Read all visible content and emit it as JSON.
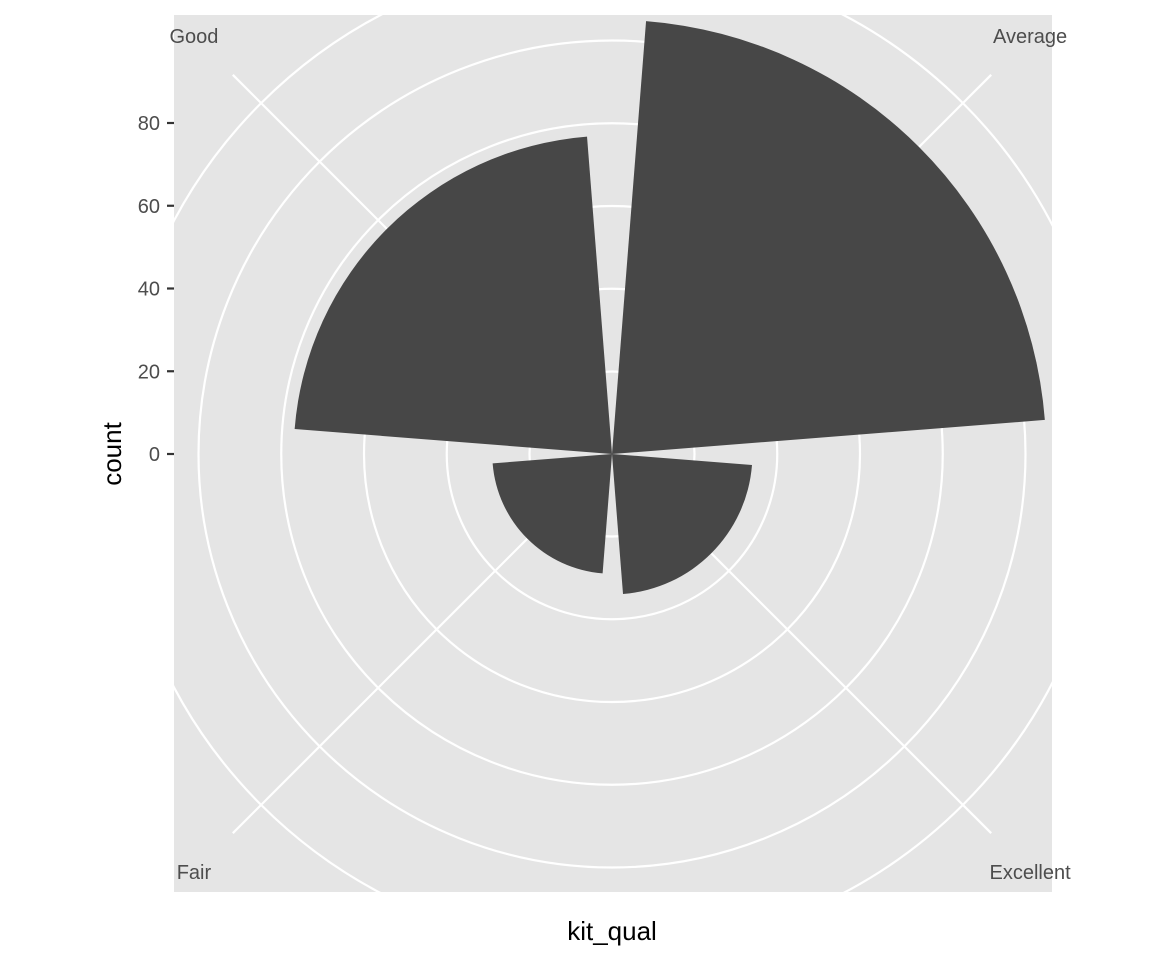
{
  "chart_data": {
    "type": "bar",
    "coord": "polar",
    "categories": [
      "Average",
      "Excellent",
      "Fair",
      "Good"
    ],
    "values": [
      85,
      14,
      9,
      57
    ],
    "xlabel": "kit_qual",
    "ylabel": "count",
    "y_ticks": [
      0,
      20,
      40,
      60,
      80
    ],
    "ylim": [
      -20,
      100
    ],
    "grid": true,
    "legend": "none",
    "colors": {
      "bar": "#474747",
      "panel": "#e5e5e5",
      "grid": "#ffffff",
      "text": "#4d4d4d",
      "title": "#000000"
    }
  }
}
